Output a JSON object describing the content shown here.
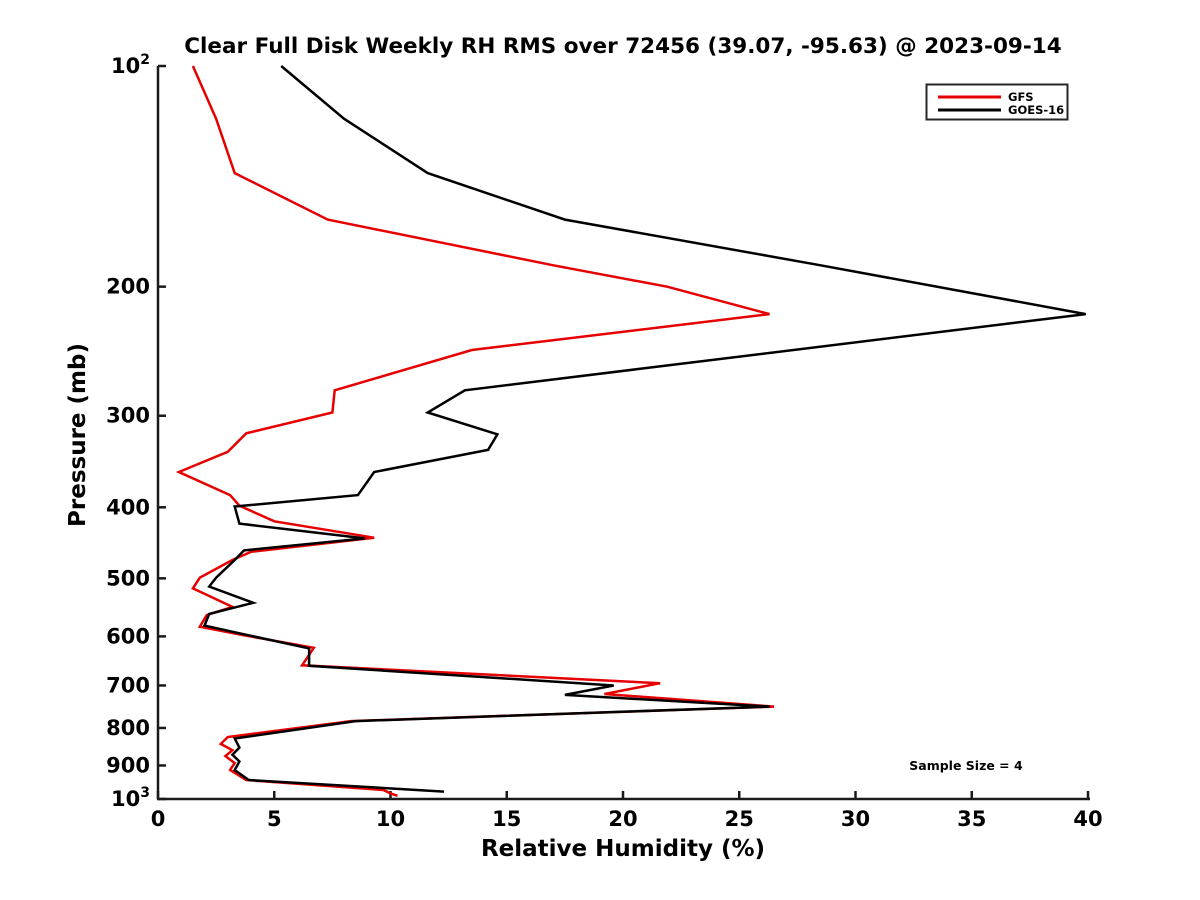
{
  "page": {
    "background": "#ffffff"
  },
  "chart_data": {
    "type": "line",
    "title": "Clear Full Disk Weekly RH RMS over 72456 (39.07, -95.63) @ 2023-09-14",
    "xlabel": "Relative Humidity (%)",
    "ylabel": "Pressure (mb)",
    "xlim": [
      0,
      40
    ],
    "ylim": [
      100,
      1000
    ],
    "y_scale": "log",
    "y_inverted": true,
    "grid": false,
    "legend_position": "upper right",
    "annotation": "Sample Size = 4",
    "x_ticks": [
      0,
      5,
      10,
      15,
      20,
      25,
      30,
      35,
      40
    ],
    "y_ticks": [
      {
        "value": 100,
        "mantissa": "10",
        "exponent": "2"
      },
      {
        "value": 200,
        "label": "200"
      },
      {
        "value": 300,
        "label": "300"
      },
      {
        "value": 400,
        "label": "400"
      },
      {
        "value": 500,
        "label": "500"
      },
      {
        "value": 600,
        "label": "600"
      },
      {
        "value": 700,
        "label": "700"
      },
      {
        "value": 800,
        "label": "800"
      },
      {
        "value": 900,
        "label": "900"
      },
      {
        "value": 1000,
        "mantissa": "10",
        "exponent": "3"
      }
    ],
    "series": [
      {
        "name": "GFS",
        "color": "#e60000",
        "points_pressure_rh": [
          [
            100,
            1.5
          ],
          [
            118,
            2.5
          ],
          [
            140,
            3.3
          ],
          [
            162,
            7.3
          ],
          [
            187,
            17.0
          ],
          [
            200,
            21.9
          ],
          [
            218,
            26.3
          ],
          [
            244,
            13.5
          ],
          [
            277,
            7.6
          ],
          [
            297,
            7.5
          ],
          [
            317,
            3.8
          ],
          [
            336,
            3.0
          ],
          [
            358,
            0.9
          ],
          [
            385,
            3.1
          ],
          [
            398,
            3.5
          ],
          [
            418,
            5.0
          ],
          [
            440,
            9.3
          ],
          [
            460,
            4.0
          ],
          [
            472,
            3.2
          ],
          [
            499,
            1.8
          ],
          [
            516,
            1.5
          ],
          [
            547,
            3.2
          ],
          [
            561,
            2.1
          ],
          [
            582,
            1.8
          ],
          [
            598,
            3.7
          ],
          [
            622,
            6.7
          ],
          [
            657,
            6.2
          ],
          [
            695,
            21.6
          ],
          [
            719,
            19.2
          ],
          [
            748,
            26.5
          ],
          [
            783,
            8.3
          ],
          [
            823,
            3.0
          ],
          [
            841,
            2.7
          ],
          [
            858,
            3.2
          ],
          [
            874,
            2.9
          ],
          [
            893,
            3.3
          ],
          [
            913,
            3.1
          ],
          [
            942,
            3.8
          ],
          [
            972,
            9.7
          ],
          [
            983,
            10.0
          ],
          [
            990,
            10.3
          ]
        ]
      },
      {
        "name": "GOES-16",
        "color": "#000000",
        "points_pressure_rh": [
          [
            100,
            5.3
          ],
          [
            118,
            8.0
          ],
          [
            140,
            11.6
          ],
          [
            162,
            17.5
          ],
          [
            187,
            28.5
          ],
          [
            218,
            39.9
          ],
          [
            259,
            20.7
          ],
          [
            277,
            13.2
          ],
          [
            297,
            11.6
          ],
          [
            318,
            14.6
          ],
          [
            334,
            14.2
          ],
          [
            358,
            9.3
          ],
          [
            385,
            8.6
          ],
          [
            399,
            3.3
          ],
          [
            421,
            3.5
          ],
          [
            441,
            8.9
          ],
          [
            458,
            3.7
          ],
          [
            472,
            3.3
          ],
          [
            499,
            2.5
          ],
          [
            513,
            2.2
          ],
          [
            540,
            4.1
          ],
          [
            559,
            2.2
          ],
          [
            580,
            2.0
          ],
          [
            598,
            3.9
          ],
          [
            623,
            6.5
          ],
          [
            658,
            6.5
          ],
          [
            700,
            19.6
          ],
          [
            721,
            17.5
          ],
          [
            748,
            26.3
          ],
          [
            783,
            8.5
          ],
          [
            827,
            3.3
          ],
          [
            851,
            3.5
          ],
          [
            870,
            3.2
          ],
          [
            889,
            3.5
          ],
          [
            913,
            3.3
          ],
          [
            942,
            3.9
          ],
          [
            977,
            12.3
          ]
        ]
      }
    ]
  }
}
